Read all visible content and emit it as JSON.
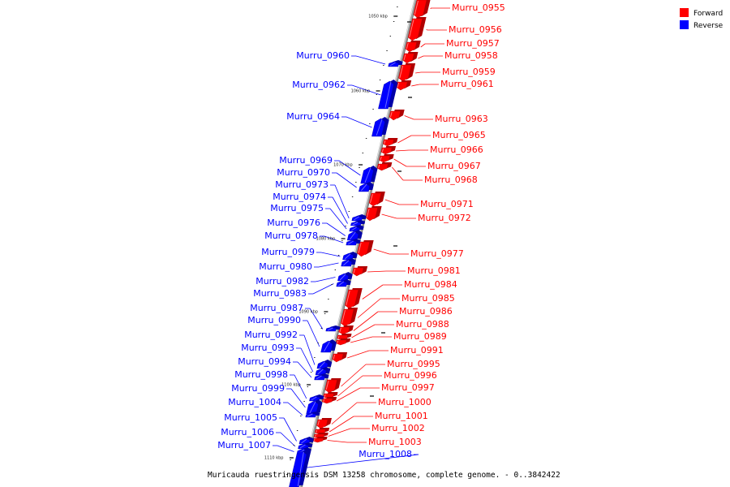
{
  "caption": "Muricauda ruestringensis DSM 13258 chromosome, complete genome. - 0..3842422",
  "legend": {
    "forward": {
      "label": "Forward",
      "color": "#ff0000"
    },
    "reverse": {
      "label": "Reverse",
      "color": "#0000ff"
    }
  },
  "colors": {
    "forward_dark": "#b00000",
    "reverse_dark": "#0000a8",
    "backbone": "#8a8a8a"
  },
  "ticks": [
    {
      "kbp": 1050,
      "label": "1050 kbp"
    },
    {
      "kbp": 1060,
      "label": "1060 kbp"
    },
    {
      "kbp": 1070,
      "label": "1070 kbp"
    },
    {
      "kbp": 1080,
      "label": "1080 kbp"
    },
    {
      "kbp": 1090,
      "label": "1090 kbp"
    },
    {
      "kbp": 1100,
      "label": "1100 kbp"
    },
    {
      "kbp": 1110,
      "label": "1110 kbp"
    }
  ],
  "genes": [
    {
      "name": "Murru_0955",
      "strand": "forward"
    },
    {
      "name": "Murru_0956",
      "strand": "forward"
    },
    {
      "name": "Murru_0957",
      "strand": "forward"
    },
    {
      "name": "Murru_0958",
      "strand": "forward"
    },
    {
      "name": "Murru_0959",
      "strand": "forward"
    },
    {
      "name": "Murru_0960",
      "strand": "reverse"
    },
    {
      "name": "Murru_0961",
      "strand": "forward"
    },
    {
      "name": "Murru_0962",
      "strand": "reverse"
    },
    {
      "name": "Murru_0963",
      "strand": "forward"
    },
    {
      "name": "Murru_0964",
      "strand": "reverse"
    },
    {
      "name": "Murru_0965",
      "strand": "forward"
    },
    {
      "name": "Murru_0966",
      "strand": "forward"
    },
    {
      "name": "Murru_0967",
      "strand": "forward"
    },
    {
      "name": "Murru_0968",
      "strand": "forward"
    },
    {
      "name": "Murru_0969",
      "strand": "reverse"
    },
    {
      "name": "Murru_0970",
      "strand": "reverse"
    },
    {
      "name": "Murru_0971",
      "strand": "forward"
    },
    {
      "name": "Murru_0972",
      "strand": "forward"
    },
    {
      "name": "Murru_0973",
      "strand": "reverse"
    },
    {
      "name": "Murru_0974",
      "strand": "reverse"
    },
    {
      "name": "Murru_0975",
      "strand": "reverse"
    },
    {
      "name": "Murru_0976",
      "strand": "reverse"
    },
    {
      "name": "Murru_0977",
      "strand": "forward"
    },
    {
      "name": "Murru_0978",
      "strand": "reverse"
    },
    {
      "name": "Murru_0979",
      "strand": "reverse"
    },
    {
      "name": "Murru_0980",
      "strand": "reverse"
    },
    {
      "name": "Murru_0981",
      "strand": "forward"
    },
    {
      "name": "Murru_0982",
      "strand": "reverse"
    },
    {
      "name": "Murru_0983",
      "strand": "reverse"
    },
    {
      "name": "Murru_0984",
      "strand": "forward"
    },
    {
      "name": "Murru_0985",
      "strand": "forward"
    },
    {
      "name": "Murru_0986",
      "strand": "forward"
    },
    {
      "name": "Murru_0987",
      "strand": "reverse"
    },
    {
      "name": "Murru_0988",
      "strand": "forward"
    },
    {
      "name": "Murru_0989",
      "strand": "forward"
    },
    {
      "name": "Murru_0990",
      "strand": "reverse"
    },
    {
      "name": "Murru_0991",
      "strand": "forward"
    },
    {
      "name": "Murru_0992",
      "strand": "reverse"
    },
    {
      "name": "Murru_0993",
      "strand": "reverse"
    },
    {
      "name": "Murru_0994",
      "strand": "reverse"
    },
    {
      "name": "Murru_0995",
      "strand": "forward"
    },
    {
      "name": "Murru_0996",
      "strand": "forward"
    },
    {
      "name": "Murru_0997",
      "strand": "forward"
    },
    {
      "name": "Murru_0998",
      "strand": "reverse"
    },
    {
      "name": "Murru_0999",
      "strand": "reverse"
    },
    {
      "name": "Murru_1000",
      "strand": "forward"
    },
    {
      "name": "Murru_1001",
      "strand": "forward"
    },
    {
      "name": "Murru_1002",
      "strand": "forward"
    },
    {
      "name": "Murru_1003",
      "strand": "forward"
    },
    {
      "name": "Murru_1004",
      "strand": "reverse"
    },
    {
      "name": "Murru_1005",
      "strand": "reverse"
    },
    {
      "name": "Murru_1006",
      "strand": "reverse"
    },
    {
      "name": "Murru_1007",
      "strand": "reverse"
    },
    {
      "name": "Murru_1008",
      "strand": "reverse"
    }
  ]
}
